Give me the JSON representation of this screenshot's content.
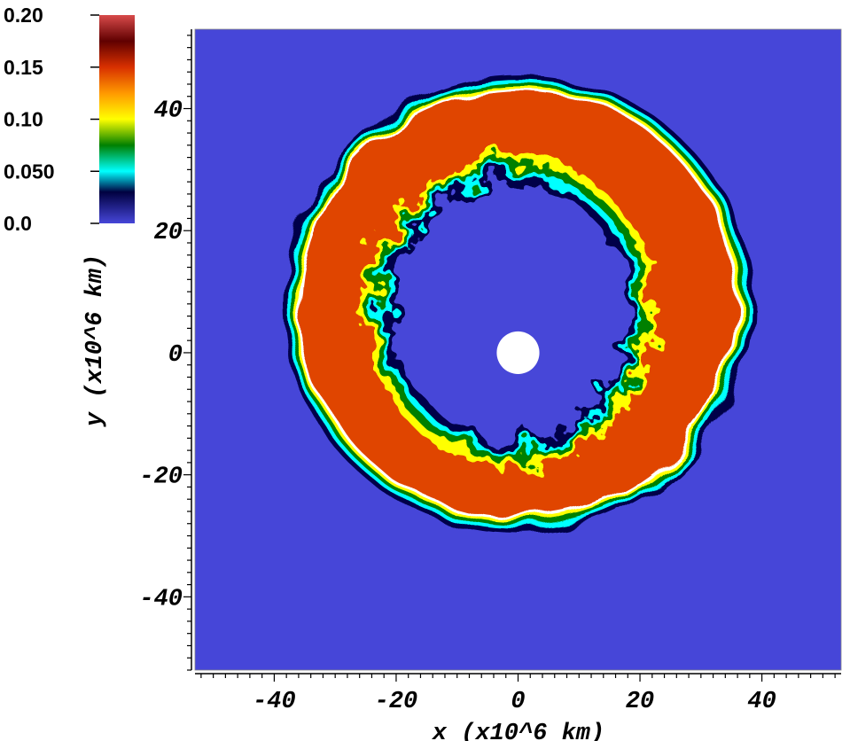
{
  "chart_data": {
    "type": "heatmap",
    "title": "",
    "xlabel": "x (x10^6 km)",
    "ylabel": "y (x10^6 km)",
    "xlim": [
      -53,
      53
    ],
    "ylim": [
      -52,
      53
    ],
    "x_ticks": [
      -40,
      -20,
      0,
      20,
      40
    ],
    "x_tick_labels": [
      "-40",
      "-20",
      "0",
      "20",
      "40"
    ],
    "y_ticks": [
      -40,
      -20,
      0,
      20,
      40
    ],
    "y_tick_labels": [
      "-40",
      "-20",
      "0",
      "20",
      "40"
    ],
    "grid": false,
    "colorbar": {
      "placement": "top-left",
      "range": [
        0.0,
        0.2
      ],
      "ticks": [
        0.0,
        0.05,
        0.1,
        0.15,
        0.2
      ],
      "tick_labels": [
        "0.0",
        "0.050",
        "0.10",
        "0.15",
        "0.20"
      ],
      "colormap": [
        {
          "value": 0.0,
          "color": "#4646d8"
        },
        {
          "value": 0.03,
          "color": "#000040"
        },
        {
          "value": 0.05,
          "color": "#00ffff"
        },
        {
          "value": 0.075,
          "color": "#008000"
        },
        {
          "value": 0.1,
          "color": "#ffff00"
        },
        {
          "value": 0.125,
          "color": "#ff9900"
        },
        {
          "value": 0.15,
          "color": "#d83000"
        },
        {
          "value": 0.175,
          "color": "#600000"
        },
        {
          "value": 0.2,
          "color": "#d84a4a"
        }
      ]
    },
    "field": {
      "background_value": 0.0,
      "shell_value": 0.145,
      "shell_outer_radius_approx": 37,
      "inner_cavity_radius_approx": 20,
      "central_point_radius": 3.5,
      "central_point_center": [
        0,
        0
      ],
      "ring_center_approx": [
        0,
        8
      ]
    }
  },
  "colors": {
    "background": "#4646d8",
    "shell": "#ee5500",
    "outer_edge": "#000040",
    "central_point": "#ffffff"
  }
}
